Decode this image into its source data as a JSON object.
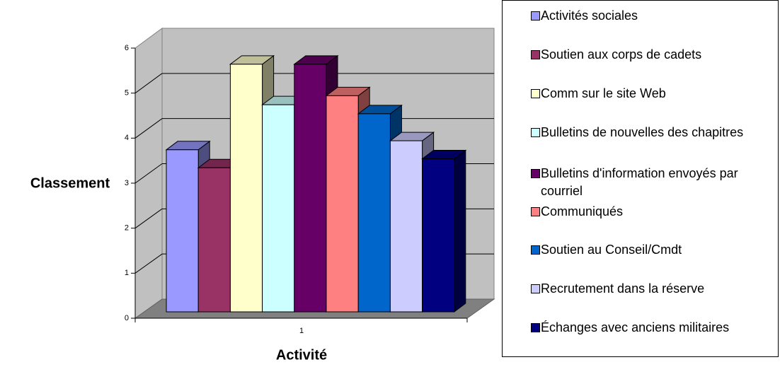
{
  "chart_data": {
    "type": "bar3d",
    "y_label": "Classement",
    "x_label": "Activité",
    "categories": [
      "1"
    ],
    "ylim": [
      0,
      6
    ],
    "yticks": [
      0,
      1,
      2,
      3,
      4,
      5,
      6
    ],
    "grid": true,
    "series": [
      {
        "name": "Activités sociales",
        "color": "#9999ff",
        "values": [
          3.6
        ]
      },
      {
        "name": "Soutien aux corps de cadets",
        "color": "#993366",
        "values": [
          3.2
        ]
      },
      {
        "name": "Comm sur le site Web",
        "color": "#ffffcc",
        "values": [
          5.5
        ]
      },
      {
        "name": "Bulletins de nouvelles des chapitres",
        "color": "#ccffff",
        "values": [
          4.6
        ]
      },
      {
        "name": "Bulletins d'information envoyés par courriel",
        "color": "#660066",
        "values": [
          5.5
        ]
      },
      {
        "name": "Communiqués",
        "color": "#ff8080",
        "values": [
          4.8
        ]
      },
      {
        "name": "Soutien au Conseil/Cmdt",
        "color": "#0066cc",
        "values": [
          4.4
        ]
      },
      {
        "name": "Recrutement dans la réserve",
        "color": "#ccccff",
        "values": [
          3.8
        ]
      },
      {
        "name": "Échanges avec anciens militaires",
        "color": "#000080",
        "values": [
          3.4
        ]
      }
    ]
  }
}
